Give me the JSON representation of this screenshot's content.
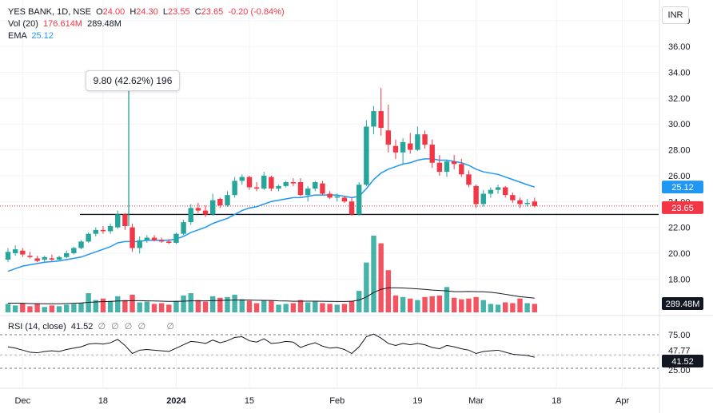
{
  "symbol": {
    "name": "YES BANK",
    "interval": "1D",
    "exchange": "NSE"
  },
  "ohlc": {
    "o_label": "O",
    "o": "24.00",
    "h_label": "H",
    "h": "24.30",
    "l_label": "L",
    "l": "23.55",
    "c_label": "C",
    "c": "23.65",
    "change": "-0.20 (-0.84%)"
  },
  "vol_legend": {
    "label": "Vol (20)",
    "value1": "176.614M",
    "value2": "289.48M"
  },
  "ema_legend": {
    "label": "EMA",
    "value": "25.12"
  },
  "rsi_legend": {
    "label": "RSI (14, close)",
    "value": "41.52",
    "icons": "∅ ∅ ∅ ∅",
    "icon2": "∅"
  },
  "currency": "INR",
  "annotation": "9.80 (42.62%) 196",
  "colors": {
    "up": "#26a69a",
    "down": "#f23645",
    "ema": "#2196f3",
    "grid": "#f0f3fa",
    "axis_text": "#131722"
  },
  "chart_data": {
    "type": "candlestick",
    "price_axis": {
      "ticks": [
        18,
        20,
        22,
        24,
        26,
        28,
        30,
        32,
        34,
        36,
        38
      ],
      "tick_labels": [
        "18.00",
        "20.00",
        "22.00",
        "24.00",
        "26.00",
        "28.00",
        "30.00",
        "32.00",
        "34.00",
        "36.00",
        "38.00"
      ],
      "range": [
        16.1,
        39.6
      ]
    },
    "rsi_axis": {
      "ticks": [
        75,
        47.77,
        41.14,
        25
      ],
      "tick_labels": [
        "75.00",
        "47.77",
        "41.14",
        "25.00"
      ]
    },
    "x_ticks": [
      {
        "label": "Dec",
        "index": 2
      },
      {
        "label": "18",
        "index": 13
      },
      {
        "label": "2024",
        "index": 23
      },
      {
        "label": "15",
        "index": 33
      },
      {
        "label": "Feb",
        "index": 45
      },
      {
        "label": "19",
        "index": 56
      },
      {
        "label": "Mar",
        "index": 64
      },
      {
        "label": "18",
        "index": 75
      },
      {
        "label": "Apr",
        "index": 84
      }
    ],
    "last_price_label": "23.65",
    "ema_last_label": "25.12",
    "volume_last_label": "289.48M",
    "volume_partial_label": "176.614M",
    "rsi_last_label": "41.52",
    "candles": [
      {
        "o": 19.5,
        "h": 20.4,
        "l": 19.3,
        "c": 20.1,
        "v": 110
      },
      {
        "o": 20.0,
        "h": 20.6,
        "l": 19.8,
        "c": 20.3,
        "v": 90
      },
      {
        "o": 20.2,
        "h": 20.4,
        "l": 19.7,
        "c": 19.9,
        "v": 120
      },
      {
        "o": 19.8,
        "h": 20.1,
        "l": 19.6,
        "c": 19.7,
        "v": 80
      },
      {
        "o": 19.6,
        "h": 19.8,
        "l": 19.3,
        "c": 19.4,
        "v": 110
      },
      {
        "o": 19.5,
        "h": 19.8,
        "l": 19.3,
        "c": 19.7,
        "v": 70
      },
      {
        "o": 19.6,
        "h": 19.9,
        "l": 19.4,
        "c": 19.5,
        "v": 90
      },
      {
        "o": 19.5,
        "h": 19.8,
        "l": 19.4,
        "c": 19.7,
        "v": 80
      },
      {
        "o": 19.7,
        "h": 20.2,
        "l": 19.6,
        "c": 20.0,
        "v": 100
      },
      {
        "o": 20.0,
        "h": 20.5,
        "l": 19.9,
        "c": 20.4,
        "v": 110
      },
      {
        "o": 20.4,
        "h": 21.0,
        "l": 20.3,
        "c": 20.9,
        "v": 120
      },
      {
        "o": 20.9,
        "h": 21.6,
        "l": 20.8,
        "c": 21.5,
        "v": 250
      },
      {
        "o": 21.5,
        "h": 22.0,
        "l": 21.3,
        "c": 21.8,
        "v": 160
      },
      {
        "o": 21.8,
        "h": 22.1,
        "l": 21.5,
        "c": 21.7,
        "v": 180
      },
      {
        "o": 21.7,
        "h": 22.3,
        "l": 21.5,
        "c": 22.1,
        "v": 150
      },
      {
        "o": 22.0,
        "h": 23.3,
        "l": 21.9,
        "c": 23.0,
        "v": 210
      },
      {
        "o": 23.0,
        "h": 23.1,
        "l": 21.8,
        "c": 22.1,
        "v": 160
      },
      {
        "o": 22.0,
        "h": 22.3,
        "l": 20.1,
        "c": 20.4,
        "v": 230
      },
      {
        "o": 20.4,
        "h": 21.3,
        "l": 20.0,
        "c": 21.0,
        "v": 130
      },
      {
        "o": 21.0,
        "h": 21.4,
        "l": 20.8,
        "c": 21.2,
        "v": 140
      },
      {
        "o": 21.2,
        "h": 21.4,
        "l": 20.9,
        "c": 21.0,
        "v": 110
      },
      {
        "o": 21.0,
        "h": 21.2,
        "l": 20.8,
        "c": 20.9,
        "v": 120
      },
      {
        "o": 20.9,
        "h": 21.1,
        "l": 20.7,
        "c": 20.8,
        "v": 100
      },
      {
        "o": 20.8,
        "h": 21.6,
        "l": 20.7,
        "c": 21.5,
        "v": 150
      },
      {
        "o": 21.5,
        "h": 22.6,
        "l": 21.4,
        "c": 22.4,
        "v": 220
      },
      {
        "o": 22.4,
        "h": 23.8,
        "l": 22.2,
        "c": 23.5,
        "v": 250
      },
      {
        "o": 23.5,
        "h": 23.9,
        "l": 23.1,
        "c": 23.3,
        "v": 160
      },
      {
        "o": 23.3,
        "h": 23.7,
        "l": 22.8,
        "c": 23.0,
        "v": 140
      },
      {
        "o": 23.0,
        "h": 24.6,
        "l": 22.9,
        "c": 24.1,
        "v": 210
      },
      {
        "o": 24.2,
        "h": 24.3,
        "l": 23.5,
        "c": 23.7,
        "v": 190
      },
      {
        "o": 23.7,
        "h": 24.8,
        "l": 23.6,
        "c": 24.5,
        "v": 200
      },
      {
        "o": 24.5,
        "h": 25.9,
        "l": 24.3,
        "c": 25.6,
        "v": 230
      },
      {
        "o": 25.6,
        "h": 26.1,
        "l": 25.3,
        "c": 25.9,
        "v": 170
      },
      {
        "o": 25.9,
        "h": 26.0,
        "l": 24.9,
        "c": 25.1,
        "v": 150
      },
      {
        "o": 25.1,
        "h": 25.5,
        "l": 24.8,
        "c": 25.0,
        "v": 120
      },
      {
        "o": 25.0,
        "h": 26.3,
        "l": 24.9,
        "c": 26.0,
        "v": 160
      },
      {
        "o": 25.9,
        "h": 26.0,
        "l": 24.8,
        "c": 25.0,
        "v": 150
      },
      {
        "o": 25.0,
        "h": 25.3,
        "l": 24.8,
        "c": 25.2,
        "v": 100
      },
      {
        "o": 25.2,
        "h": 25.6,
        "l": 25.1,
        "c": 25.5,
        "v": 110
      },
      {
        "o": 25.5,
        "h": 25.8,
        "l": 25.2,
        "c": 25.4,
        "v": 120
      },
      {
        "o": 25.5,
        "h": 25.8,
        "l": 24.4,
        "c": 24.5,
        "v": 160
      },
      {
        "o": 24.5,
        "h": 25.2,
        "l": 24.0,
        "c": 25.0,
        "v": 130
      },
      {
        "o": 25.0,
        "h": 25.6,
        "l": 24.8,
        "c": 25.5,
        "v": 140
      },
      {
        "o": 25.4,
        "h": 25.6,
        "l": 24.5,
        "c": 24.6,
        "v": 120
      },
      {
        "o": 24.6,
        "h": 24.8,
        "l": 24.2,
        "c": 24.3,
        "v": 110
      },
      {
        "o": 24.3,
        "h": 24.6,
        "l": 24.0,
        "c": 24.4,
        "v": 100
      },
      {
        "o": 24.3,
        "h": 24.4,
        "l": 23.9,
        "c": 24.0,
        "v": 110
      },
      {
        "o": 24.0,
        "h": 24.3,
        "l": 22.9,
        "c": 23.0,
        "v": 150
      },
      {
        "o": 23.0,
        "h": 25.5,
        "l": 22.9,
        "c": 25.3,
        "v": 280
      },
      {
        "o": 25.3,
        "h": 30.3,
        "l": 25.2,
        "c": 29.8,
        "v": 650
      },
      {
        "o": 29.8,
        "h": 31.4,
        "l": 29.2,
        "c": 31.0,
        "v": 1000
      },
      {
        "o": 31.0,
        "h": 32.8,
        "l": 29.1,
        "c": 29.7,
        "v": 900
      },
      {
        "o": 29.5,
        "h": 31.5,
        "l": 27.8,
        "c": 28.4,
        "v": 550
      },
      {
        "o": 28.3,
        "h": 28.8,
        "l": 27.3,
        "c": 27.8,
        "v": 220
      },
      {
        "o": 27.8,
        "h": 28.9,
        "l": 26.9,
        "c": 28.6,
        "v": 200
      },
      {
        "o": 28.5,
        "h": 29.3,
        "l": 27.7,
        "c": 28.0,
        "v": 180
      },
      {
        "o": 28.0,
        "h": 29.8,
        "l": 27.9,
        "c": 29.2,
        "v": 160
      },
      {
        "o": 29.2,
        "h": 29.5,
        "l": 28.1,
        "c": 28.4,
        "v": 200
      },
      {
        "o": 28.4,
        "h": 28.8,
        "l": 26.6,
        "c": 27.0,
        "v": 210
      },
      {
        "o": 27.0,
        "h": 27.6,
        "l": 26.0,
        "c": 26.3,
        "v": 220
      },
      {
        "o": 26.3,
        "h": 27.2,
        "l": 25.9,
        "c": 27.1,
        "v": 330
      },
      {
        "o": 27.1,
        "h": 27.6,
        "l": 26.5,
        "c": 26.9,
        "v": 190
      },
      {
        "o": 26.9,
        "h": 27.3,
        "l": 25.9,
        "c": 26.1,
        "v": 170
      },
      {
        "o": 26.1,
        "h": 26.4,
        "l": 25.1,
        "c": 25.3,
        "v": 180
      },
      {
        "o": 25.2,
        "h": 25.3,
        "l": 23.5,
        "c": 23.8,
        "v": 200
      },
      {
        "o": 23.8,
        "h": 24.9,
        "l": 23.6,
        "c": 24.6,
        "v": 160
      },
      {
        "o": 24.6,
        "h": 25.1,
        "l": 24.3,
        "c": 24.9,
        "v": 110
      },
      {
        "o": 24.9,
        "h": 25.3,
        "l": 24.6,
        "c": 25.1,
        "v": 100
      },
      {
        "o": 25.1,
        "h": 25.2,
        "l": 24.3,
        "c": 24.5,
        "v": 130
      },
      {
        "o": 24.5,
        "h": 24.7,
        "l": 23.9,
        "c": 24.1,
        "v": 120
      },
      {
        "o": 24.1,
        "h": 24.3,
        "l": 23.5,
        "c": 23.8,
        "v": 180
      },
      {
        "o": 23.8,
        "h": 24.2,
        "l": 23.6,
        "c": 23.9,
        "v": 120
      },
      {
        "o": 24.0,
        "h": 24.3,
        "l": 23.55,
        "c": 23.65,
        "v": 110
      }
    ],
    "ema": [
      18.6,
      18.8,
      19.0,
      19.1,
      19.2,
      19.3,
      19.35,
      19.4,
      19.5,
      19.6,
      19.7,
      19.9,
      20.1,
      20.3,
      20.5,
      20.8,
      20.9,
      20.9,
      20.9,
      21.0,
      21.0,
      21.0,
      21.0,
      21.1,
      21.3,
      21.6,
      21.8,
      22.0,
      22.3,
      22.5,
      22.7,
      23.0,
      23.3,
      23.5,
      23.6,
      23.8,
      24.0,
      24.1,
      24.2,
      24.3,
      24.3,
      24.4,
      24.5,
      24.5,
      24.5,
      24.5,
      24.4,
      24.3,
      24.4,
      25.0,
      25.7,
      26.2,
      26.5,
      26.7,
      26.9,
      27.0,
      27.2,
      27.3,
      27.3,
      27.2,
      27.2,
      27.1,
      27.0,
      26.8,
      26.5,
      26.3,
      26.2,
      26.1,
      25.9,
      25.7,
      25.5,
      25.3,
      25.12
    ],
    "volume_ma": [
      120,
      120,
      118,
      115,
      113,
      112,
      112,
      112,
      114,
      118,
      122,
      130,
      135,
      140,
      142,
      148,
      150,
      152,
      152,
      150,
      148,
      146,
      143,
      143,
      146,
      150,
      150,
      150,
      152,
      155,
      158,
      160,
      162,
      160,
      158,
      156,
      155,
      150,
      148,
      145,
      146,
      146,
      146,
      145,
      143,
      142,
      142,
      145,
      160,
      200,
      260,
      300,
      320,
      320,
      318,
      312,
      306,
      300,
      290,
      285,
      280,
      270,
      270,
      272,
      270,
      268,
      262,
      250,
      235,
      220,
      205,
      195,
      185
    ],
    "rsi": [
      57,
      55,
      52,
      49,
      48,
      50,
      51,
      50,
      53,
      55,
      57,
      61,
      62,
      61,
      63,
      68,
      59,
      47,
      52,
      53,
      52,
      51,
      50,
      55,
      60,
      65,
      64,
      62,
      67,
      63,
      66,
      71,
      72,
      66,
      64,
      69,
      62,
      63,
      65,
      64,
      56,
      60,
      63,
      58,
      55,
      56,
      53,
      47,
      57,
      72,
      76,
      70,
      62,
      59,
      62,
      60,
      62,
      60,
      56,
      54,
      59,
      57,
      54,
      52,
      47,
      50,
      51,
      52,
      49,
      46,
      45,
      44,
      41.52
    ]
  }
}
